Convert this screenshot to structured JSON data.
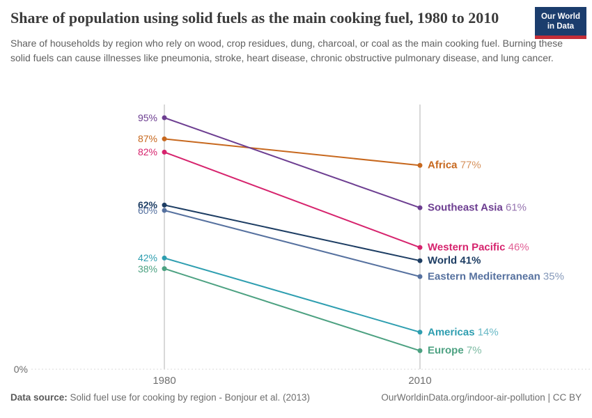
{
  "header": {
    "title": "Share of population using solid fuels as the main cooking fuel, 1980 to 2010",
    "subtitle": "Share of households by region who rely on wood, crop residues, dung, charcoal, or coal as the main cooking fuel. Burning these solid fuels can cause illnesses like pneumonia, stroke, heart disease, chronic obstructive pulmonary disease, and lung cancer.",
    "logo": {
      "line1": "Our World",
      "line2": "in Data",
      "bg_color": "#1b3d6d",
      "accent_color": "#c32e38"
    }
  },
  "chart_data": {
    "type": "line",
    "subtype": "slope",
    "x": [
      1980,
      2010
    ],
    "x_tick_labels": [
      "1980",
      "2010"
    ],
    "ylabel": "",
    "xlabel": "",
    "ylim": [
      0,
      100
    ],
    "y_baseline_label": "0%",
    "grid": "baseline-dashed-only",
    "legend_position": "right-inline-labels",
    "series": [
      {
        "name": "Africa",
        "values": [
          87,
          77
        ],
        "color": "#c7681e",
        "bold": false
      },
      {
        "name": "Southeast Asia",
        "values": [
          95,
          61
        ],
        "color": "#6d3e91",
        "bold": false
      },
      {
        "name": "Western Pacific",
        "values": [
          82,
          46
        ],
        "color": "#d6236d",
        "bold": false
      },
      {
        "name": "World",
        "values": [
          62,
          41
        ],
        "color": "#1d3d63",
        "bold": true
      },
      {
        "name": "Eastern Mediterranean",
        "values": [
          60,
          35
        ],
        "color": "#56719f",
        "bold": false
      },
      {
        "name": "Americas",
        "values": [
          42,
          14
        ],
        "color": "#2e9eb0",
        "bold": false
      },
      {
        "name": "Europe",
        "values": [
          38,
          7
        ],
        "color": "#4ca181",
        "bold": false
      }
    ],
    "axis_colors": {
      "vertical_line": "#cccccc",
      "baseline_dashed": "#d9d9d9",
      "tick_text": "#6f6f6f"
    }
  },
  "footer": {
    "datasource_label": "Data source:",
    "datasource_text": " Solid fuel use for cooking by region - Bonjour et al. (2013)",
    "link_text": "OurWorldinData.org/indoor-air-pollution | CC BY"
  }
}
